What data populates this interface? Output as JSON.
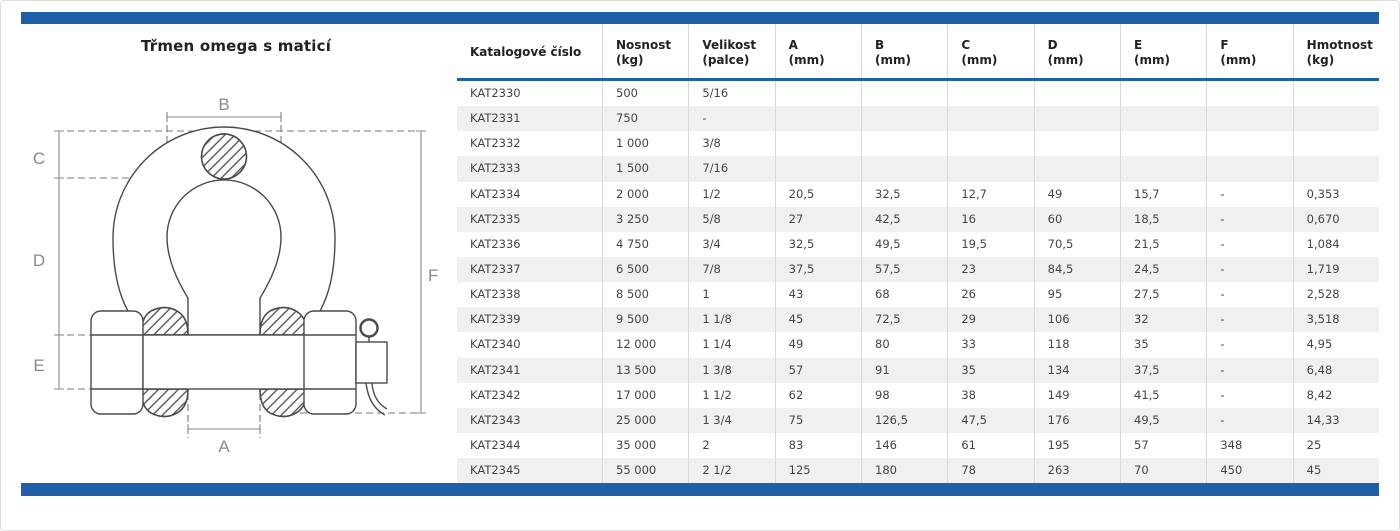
{
  "header": {
    "title": "Třmen omega s maticí"
  },
  "colors": {
    "accent_blue": "#1e5fa8",
    "row_stripe": "#f0f0f0",
    "grid_line": "#d9d9d9",
    "drawing_line": "#4a4a4a",
    "dimension_gray": "#8a8a8a"
  },
  "diagram": {
    "name": "bow-shackle-dimension-drawing",
    "dims": {
      "a": "A",
      "b": "B",
      "c": "C",
      "d": "D",
      "e": "E",
      "f": "F"
    }
  },
  "table": {
    "columns": [
      {
        "label": "Katalogové číslo",
        "unit": ""
      },
      {
        "label": "Nosnost",
        "unit": "(kg)"
      },
      {
        "label": "Velikost",
        "unit": "(palce)"
      },
      {
        "label": "A",
        "unit": "(mm)"
      },
      {
        "label": "B",
        "unit": "(mm)"
      },
      {
        "label": "C",
        "unit": "(mm)"
      },
      {
        "label": "D",
        "unit": "(mm)"
      },
      {
        "label": "E",
        "unit": "(mm)"
      },
      {
        "label": "F",
        "unit": "(mm)"
      },
      {
        "label": "Hmotnost",
        "unit": "(kg)"
      }
    ],
    "rows": [
      [
        "KAT2330",
        "500",
        "5/16",
        "",
        "",
        "",
        "",
        "",
        "",
        ""
      ],
      [
        "KAT2331",
        "750",
        "-",
        "",
        "",
        "",
        "",
        "",
        "",
        ""
      ],
      [
        "KAT2332",
        "1 000",
        "3/8",
        "",
        "",
        "",
        "",
        "",
        "",
        ""
      ],
      [
        "KAT2333",
        "1 500",
        "7/16",
        "",
        "",
        "",
        "",
        "",
        "",
        ""
      ],
      [
        "KAT2334",
        "2 000",
        "1/2",
        "20,5",
        "32,5",
        "12,7",
        "49",
        "15,7",
        "-",
        "0,353"
      ],
      [
        "KAT2335",
        "3 250",
        "5/8",
        "27",
        "42,5",
        "16",
        "60",
        "18,5",
        "-",
        "0,670"
      ],
      [
        "KAT2336",
        "4 750",
        "3/4",
        "32,5",
        "49,5",
        "19,5",
        "70,5",
        "21,5",
        "-",
        "1,084"
      ],
      [
        "KAT2337",
        "6 500",
        "7/8",
        "37,5",
        "57,5",
        "23",
        "84,5",
        "24,5",
        "-",
        "1,719"
      ],
      [
        "KAT2338",
        "8 500",
        "1",
        "43",
        "68",
        "26",
        "95",
        "27,5",
        "-",
        "2,528"
      ],
      [
        "KAT2339",
        "9 500",
        "1 1/8",
        "45",
        "72,5",
        "29",
        "106",
        "32",
        "-",
        "3,518"
      ],
      [
        "KAT2340",
        "12 000",
        "1 1/4",
        "49",
        "80",
        "33",
        "118",
        "35",
        "-",
        "4,95"
      ],
      [
        "KAT2341",
        "13 500",
        "1 3/8",
        "57",
        "91",
        "35",
        "134",
        "37,5",
        "-",
        "6,48"
      ],
      [
        "KAT2342",
        "17 000",
        "1 1/2",
        "62",
        "98",
        "38",
        "149",
        "41,5",
        "-",
        "8,42"
      ],
      [
        "KAT2343",
        "25 000",
        "1 3/4",
        "75",
        "126,5",
        "47,5",
        "176",
        "49,5",
        "-",
        "14,33"
      ],
      [
        "KAT2344",
        "35 000",
        "2",
        "83",
        "146",
        "61",
        "195",
        "57",
        "348",
        "25"
      ],
      [
        "KAT2345",
        "55 000",
        "2 1/2",
        "125",
        "180",
        "78",
        "263",
        "70",
        "450",
        "45"
      ]
    ]
  }
}
